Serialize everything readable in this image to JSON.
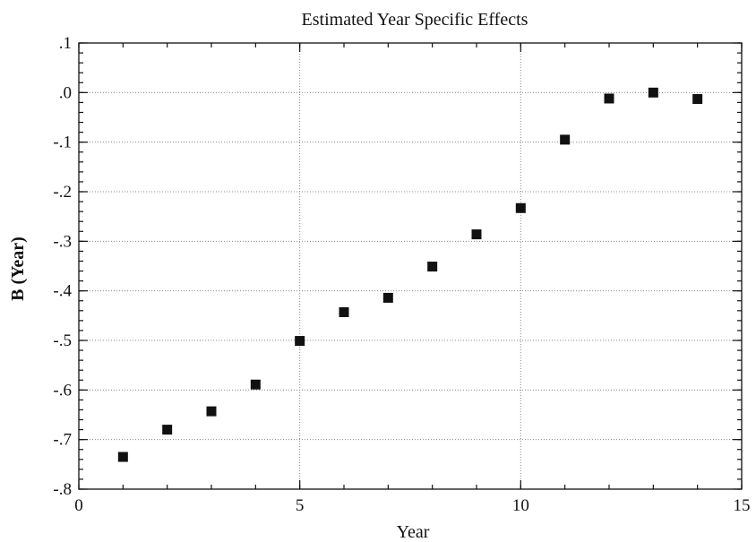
{
  "chart_data": {
    "type": "scatter",
    "title": "Estimated Year Specific Effects",
    "xlabel": "Year",
    "ylabel": "B (Year)",
    "xlim": [
      0,
      15
    ],
    "ylim": [
      -0.8,
      0.1
    ],
    "x_ticks": [
      0,
      5,
      10,
      15
    ],
    "x_tick_labels": [
      "0",
      "5",
      "10",
      "15"
    ],
    "y_ticks": [
      0.1,
      0.0,
      -0.1,
      -0.2,
      -0.3,
      -0.4,
      -0.5,
      -0.6,
      -0.7,
      -0.8
    ],
    "y_tick_labels": [
      ".1",
      ".0",
      "-.1",
      "-.2",
      "-.3",
      "-.4",
      "-.5",
      "-.6",
      "-.7",
      "-.8"
    ],
    "grid": true,
    "marker": "square",
    "colors": {
      "marker": "#111111",
      "grid": "#8a8a8a"
    },
    "x": [
      1,
      2,
      3,
      4,
      5,
      6,
      7,
      8,
      9,
      10,
      11,
      12,
      13,
      14
    ],
    "y": [
      -0.735,
      -0.68,
      -0.643,
      -0.589,
      -0.501,
      -0.443,
      -0.414,
      -0.351,
      -0.286,
      -0.233,
      -0.095,
      -0.012,
      0.0,
      -0.013
    ]
  }
}
